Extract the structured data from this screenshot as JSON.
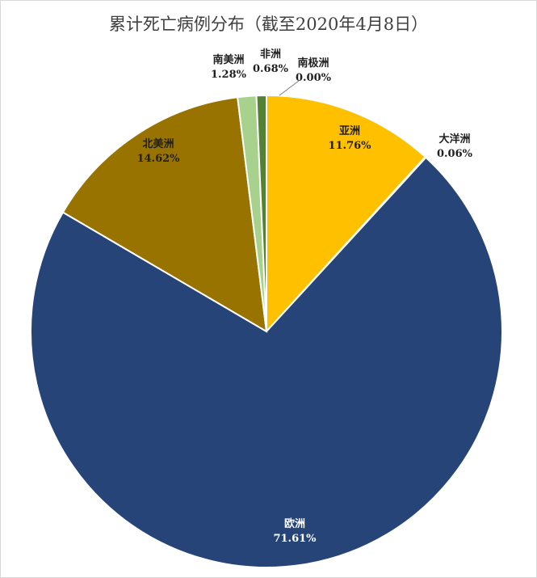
{
  "chart_data": {
    "type": "pie",
    "title": "累计死亡病例分布（截至2020年4月8日）",
    "start_angle_deg": 0,
    "direction": "clockwise",
    "slices": [
      {
        "name": "亚洲",
        "value": 11.76,
        "label": "11.76%",
        "color": "#ffc000"
      },
      {
        "name": "大洋洲",
        "value": 0.06,
        "label": "0.06%",
        "color": "#70ad47"
      },
      {
        "name": "欧洲",
        "value": 71.61,
        "label": "71.61%",
        "color": "#264478"
      },
      {
        "name": "北美洲",
        "value": 14.62,
        "label": "14.62%",
        "color": "#997300"
      },
      {
        "name": "南美洲",
        "value": 1.28,
        "label": "1.28%",
        "color": "#a9d18e"
      },
      {
        "name": "非洲",
        "value": 0.68,
        "label": "0.68%",
        "color": "#548235"
      },
      {
        "name": "南极洲",
        "value": 0.0,
        "label": "0.00%",
        "color": "#5b9bd5"
      }
    ]
  }
}
